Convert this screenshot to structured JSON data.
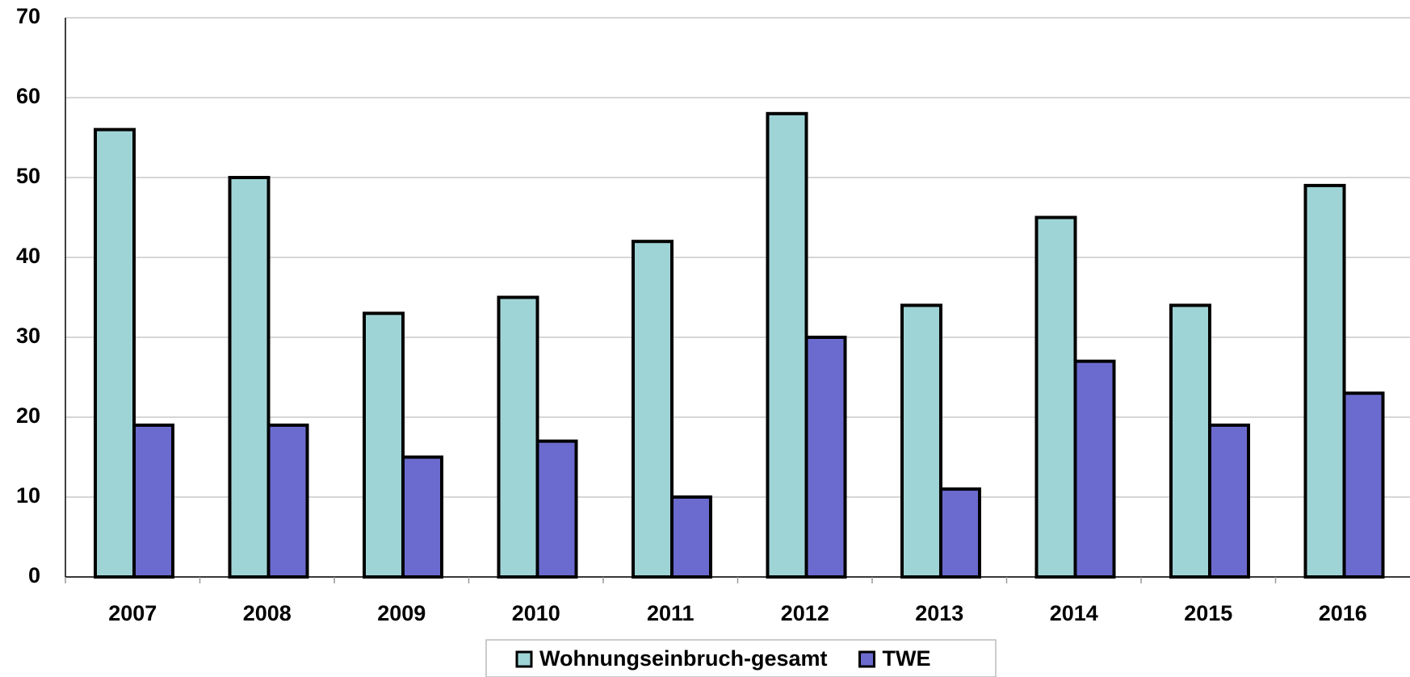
{
  "chart_data": {
    "type": "bar",
    "categories": [
      "2007",
      "2008",
      "2009",
      "2010",
      "2011",
      "2012",
      "2013",
      "2014",
      "2015",
      "2016"
    ],
    "series": [
      {
        "name": "Wohnungseinbruch-gesamt",
        "color": "#9fd4d6",
        "values": [
          56,
          50,
          33,
          35,
          42,
          58,
          34,
          45,
          34,
          49
        ]
      },
      {
        "name": "TWE",
        "color": "#6b6bcf",
        "values": [
          19,
          19,
          15,
          17,
          10,
          30,
          11,
          27,
          19,
          23
        ]
      }
    ],
    "ylim": [
      0,
      70
    ],
    "yticks": [
      0,
      10,
      20,
      30,
      40,
      50,
      60,
      70
    ],
    "grid": true,
    "legend": "bottom"
  }
}
